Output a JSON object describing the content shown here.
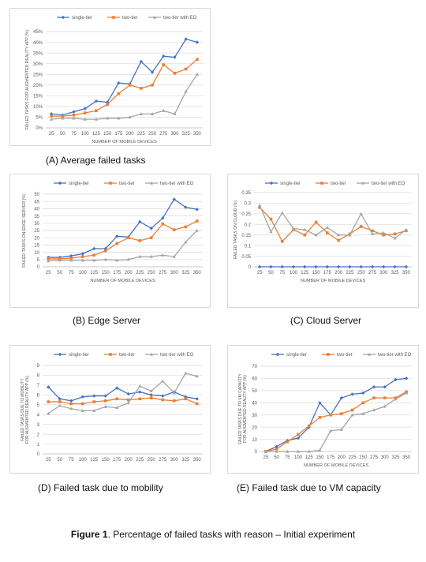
{
  "colors": {
    "single": "#4472c4",
    "two": "#ed7d31",
    "eo": "#a5a5a5",
    "grid": "#d9d9d9",
    "axis": "#bfbfbf"
  },
  "figure": {
    "label": "Figure 1",
    "text": ". Percentage of failed tasks with reason – Initial experiment"
  },
  "chart_data": [
    {
      "type": "line",
      "caption": "(A) Average failed tasks",
      "xlabel": "NUMBER OF MOBILE DEVICES",
      "ylabel": "FAILED TASKS FOR AUGMENTED REALITY APP (%)",
      "x": [
        25,
        50,
        75,
        100,
        125,
        150,
        175,
        200,
        225,
        250,
        275,
        300,
        325,
        350
      ],
      "ylim": [
        0,
        45
      ],
      "yticks": [
        0,
        5,
        10,
        15,
        20,
        25,
        30,
        35,
        40,
        45
      ],
      "yformat": "percent",
      "legend": "top-left",
      "series": [
        {
          "name": "single-tier",
          "values": [
            6.5,
            6,
            7.5,
            9,
            12.5,
            12,
            21,
            20.5,
            31,
            26,
            33.5,
            33,
            41.5,
            40
          ]
        },
        {
          "name": "two-tier",
          "values": [
            5.5,
            5.5,
            6,
            7,
            8,
            11,
            16,
            20,
            18.5,
            20,
            29.5,
            25.5,
            27.5,
            32
          ]
        },
        {
          "name": "two-tier with EO",
          "values": [
            4,
            4.5,
            4.5,
            4,
            4,
            4.5,
            4.5,
            5,
            6.5,
            6.5,
            8,
            6.5,
            17,
            25
          ]
        }
      ]
    },
    {
      "type": "line",
      "caption": "(B) Edge Server",
      "xlabel": "NUMBER OF MOBILE DEVICES",
      "ylabel": "FAILED TASKS ON EDGE SERVER (%)",
      "x": [
        25,
        50,
        75,
        100,
        125,
        150,
        175,
        200,
        225,
        250,
        275,
        300,
        325,
        350
      ],
      "ylim": [
        0,
        50
      ],
      "yticks": [
        0,
        5,
        10,
        15,
        20,
        25,
        30,
        35,
        40,
        45,
        50
      ],
      "yformat": "plain",
      "legend": "top-left",
      "series": [
        {
          "name": "single-tier",
          "values": [
            6.5,
            6.5,
            7.5,
            9,
            12.5,
            12.5,
            21,
            20.5,
            31,
            26.5,
            33.5,
            46.5,
            41,
            39.5
          ]
        },
        {
          "name": "two-tier",
          "values": [
            5.5,
            5.5,
            6,
            7,
            8,
            11,
            16,
            20,
            18,
            20,
            29.5,
            25.5,
            27.5,
            31.5
          ]
        },
        {
          "name": "two-tier with EO",
          "values": [
            4,
            4.5,
            4.5,
            4.5,
            4.5,
            5,
            4.5,
            5,
            7,
            7,
            8,
            7,
            17,
            25
          ]
        }
      ]
    },
    {
      "type": "line",
      "caption": "(C) Cloud Server",
      "xlabel": "NUMBER OF MOBILE DEVICES",
      "ylabel": "FAILED TASKS ON CLOUD (%)",
      "x": [
        25,
        50,
        75,
        100,
        125,
        150,
        175,
        200,
        225,
        250,
        275,
        300,
        325,
        350
      ],
      "ylim": [
        0,
        0.35
      ],
      "yticks": [
        0,
        0.05,
        0.1,
        0.15,
        0.2,
        0.25,
        0.3,
        0.35
      ],
      "yformat": "plain",
      "legend": "top-left",
      "series": [
        {
          "name": "single-tier",
          "values": [
            0,
            0,
            0,
            0,
            0,
            0,
            0,
            0,
            0,
            0,
            0,
            0,
            0,
            0
          ]
        },
        {
          "name": "two-tier",
          "values": [
            0.28,
            0.225,
            0.12,
            0.175,
            0.15,
            0.21,
            0.16,
            0.125,
            0.155,
            0.19,
            0.17,
            0.15,
            0.155,
            0.17
          ]
        },
        {
          "name": "two-tier with EO",
          "values": [
            0.29,
            0.165,
            0.255,
            0.18,
            0.175,
            0.15,
            0.185,
            0.15,
            0.15,
            0.25,
            0.155,
            0.16,
            0.135,
            0.175
          ]
        }
      ]
    },
    {
      "type": "line",
      "caption": "(D) Failed task due to mobility",
      "xlabel": "",
      "ylabel": "FAILED TASKS DUE TO MOBILITY FOR AUGMENTED REALITY APP (%)",
      "x": [
        25,
        50,
        75,
        100,
        125,
        150,
        175,
        200,
        225,
        250,
        275,
        300,
        325,
        350
      ],
      "ylim": [
        0,
        9
      ],
      "yticks": [
        0,
        1,
        2,
        3,
        4,
        5,
        6,
        7,
        8,
        9
      ],
      "yformat": "plain",
      "legend": "top-left",
      "series": [
        {
          "name": "single-tier",
          "values": [
            6.8,
            5.6,
            5.4,
            5.8,
            5.9,
            5.9,
            6.7,
            6.1,
            6.3,
            6.0,
            5.9,
            6.3,
            5.8,
            5.6
          ]
        },
        {
          "name": "two-tier",
          "values": [
            5.3,
            5.3,
            5.1,
            5.1,
            5.3,
            5.4,
            5.6,
            5.5,
            5.6,
            5.7,
            5.5,
            5.4,
            5.6,
            5.1
          ]
        },
        {
          "name": "two-tier with EO",
          "values": [
            4.1,
            4.9,
            4.6,
            4.4,
            4.4,
            4.8,
            4.7,
            5.2,
            6.9,
            6.4,
            7.4,
            6.2,
            8.2,
            7.9
          ]
        }
      ]
    },
    {
      "type": "line",
      "caption": "(E) Failed task due to VM capacity",
      "xlabel": "NUMBER OF MOBILE DEVICES",
      "ylabel": "FAILED TASKS DUE TO VM CAPACITY FOR AUGMENTED REALITY APP (%)",
      "x": [
        25,
        50,
        75,
        100,
        125,
        150,
        175,
        200,
        225,
        250,
        275,
        300,
        325,
        350
      ],
      "ylim": [
        0,
        70
      ],
      "yticks": [
        0,
        10,
        20,
        30,
        40,
        50,
        60,
        70
      ],
      "yformat": "plain",
      "legend": "top-left",
      "series": [
        {
          "name": "single-tier",
          "values": [
            0,
            4,
            9,
            11,
            20,
            40,
            30,
            44,
            47,
            48,
            53,
            53,
            59,
            60
          ]
        },
        {
          "name": "two-tier",
          "values": [
            0,
            2,
            8,
            14,
            21,
            28,
            30,
            31,
            34,
            40,
            44,
            44,
            44,
            49
          ]
        },
        {
          "name": "two-tier with EO",
          "values": [
            0,
            0,
            0,
            0,
            0,
            1,
            17,
            18,
            30,
            31,
            34,
            37,
            43,
            48
          ]
        }
      ]
    }
  ]
}
